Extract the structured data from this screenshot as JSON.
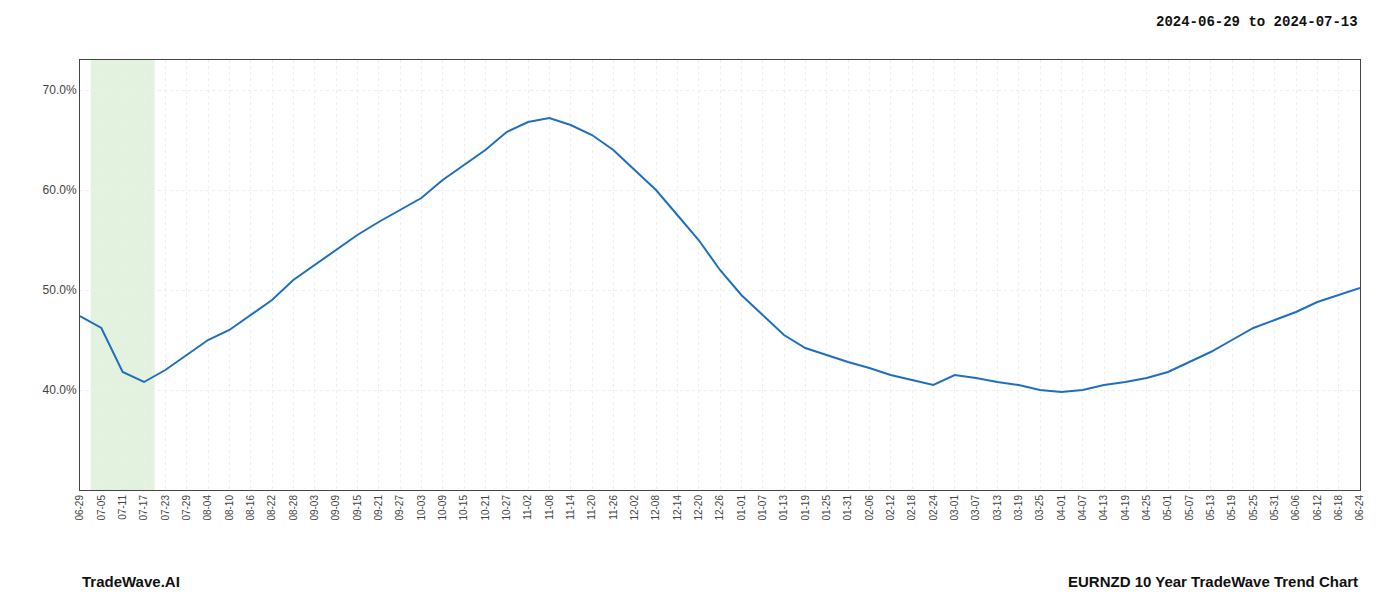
{
  "chart_data": {
    "type": "line",
    "annotations": [
      "2024-06-29 to 2024-07-13",
      "TradeWave.AI",
      "EURNZD 10 Year TradeWave Trend Chart"
    ],
    "categories": [
      "06-29",
      "07-05",
      "07-11",
      "07-17",
      "07-23",
      "07-29",
      "08-04",
      "08-10",
      "08-16",
      "08-22",
      "08-28",
      "09-03",
      "09-09",
      "09-15",
      "09-21",
      "09-27",
      "10-03",
      "10-09",
      "10-15",
      "10-21",
      "10-27",
      "11-02",
      "11-08",
      "11-14",
      "11-20",
      "11-26",
      "12-02",
      "12-08",
      "12-14",
      "12-20",
      "12-26",
      "01-01",
      "01-07",
      "01-13",
      "01-19",
      "01-25",
      "01-31",
      "02-06",
      "02-12",
      "02-18",
      "02-24",
      "03-01",
      "03-07",
      "03-13",
      "03-19",
      "03-25",
      "04-01",
      "04-07",
      "04-13",
      "04-19",
      "04-25",
      "05-01",
      "05-07",
      "05-13",
      "05-19",
      "05-25",
      "05-31",
      "06-06",
      "06-12",
      "06-18",
      "06-24"
    ],
    "values": [
      0.474,
      0.462,
      0.418,
      0.408,
      0.42,
      0.435,
      0.45,
      0.46,
      0.475,
      0.49,
      0.51,
      0.525,
      0.54,
      0.555,
      0.568,
      0.58,
      0.592,
      0.61,
      0.625,
      0.64,
      0.658,
      0.668,
      0.672,
      0.665,
      0.655,
      0.64,
      0.62,
      0.6,
      0.575,
      0.55,
      0.52,
      0.495,
      0.475,
      0.455,
      0.442,
      0.435,
      0.428,
      0.422,
      0.415,
      0.41,
      0.405,
      0.415,
      0.412,
      0.408,
      0.405,
      0.4,
      0.398,
      0.4,
      0.405,
      0.408,
      0.412,
      0.418,
      0.428,
      0.438,
      0.45,
      0.462,
      0.47,
      0.478,
      0.488,
      0.495,
      0.502
    ],
    "color": "#1f6fbf",
    "shade": {
      "from": "07-05",
      "to": "07-17",
      "color": "#c8e6c0"
    },
    "ylim": [
      0.3,
      0.73
    ],
    "yticks": [
      {
        "value": 0.4,
        "label": "40.0%"
      },
      {
        "value": 0.5,
        "label": "50.0%"
      },
      {
        "value": 0.6,
        "label": "60.0%"
      },
      {
        "value": 0.7,
        "label": "70.0%"
      }
    ],
    "grid": true
  }
}
